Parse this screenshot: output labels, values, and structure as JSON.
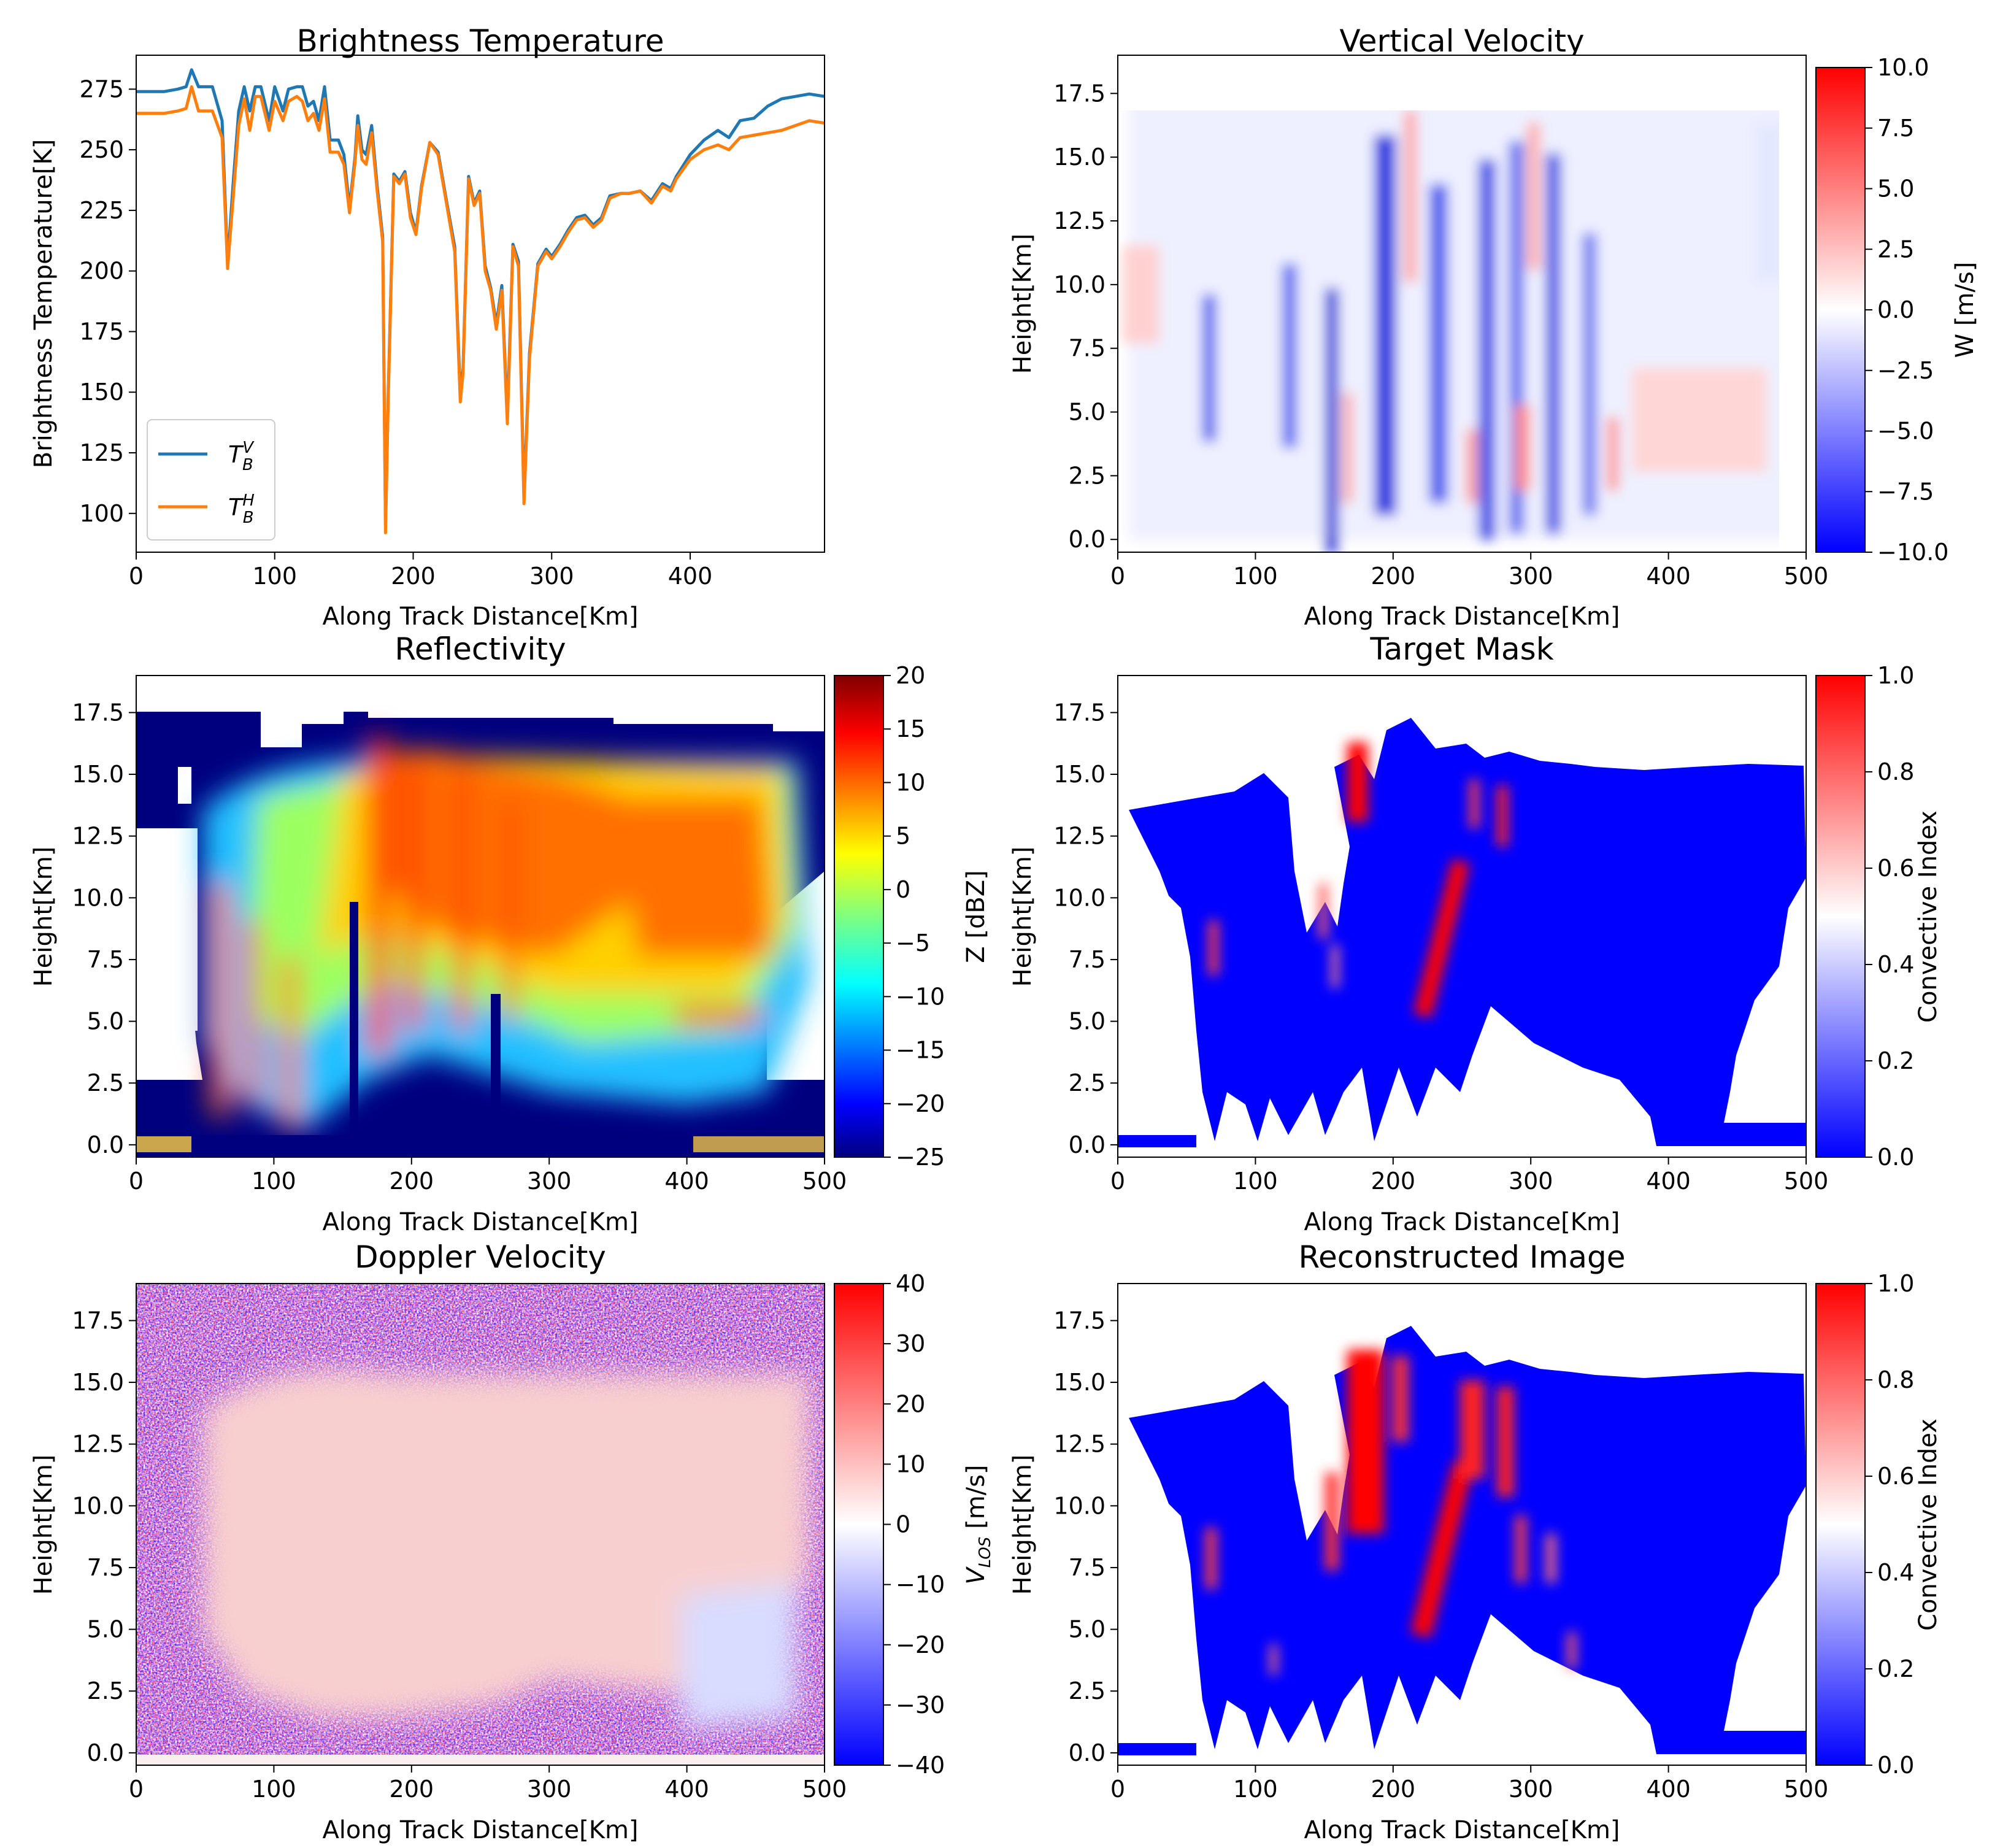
{
  "chart_data": [
    {
      "id": "bt",
      "type": "line",
      "title": "Brightness Temperature",
      "xlabel": "Along Track Distance[Km]",
      "ylabel": "Brightness Temperature[K]",
      "xlim": [
        0,
        497
      ],
      "ylim": [
        84,
        289
      ],
      "xticks": [
        0,
        100,
        200,
        300,
        400
      ],
      "yticks": [
        100,
        125,
        150,
        175,
        200,
        225,
        250,
        275
      ],
      "legend_position": "lower-left",
      "series": [
        {
          "name": "T_B^V",
          "legend_base": "T",
          "legend_sub": "B",
          "legend_sup": "V",
          "color": "#1f77b4",
          "x": [
            0,
            10,
            20,
            30,
            36,
            40,
            45,
            55,
            62,
            66,
            70,
            74,
            78,
            82,
            86,
            90,
            96,
            100,
            106,
            110,
            116,
            120,
            124,
            128,
            132,
            136,
            140,
            146,
            150,
            154,
            158,
            160,
            163,
            166,
            170,
            174,
            178,
            180,
            182,
            186,
            190,
            194,
            198,
            202,
            206,
            212,
            218,
            224,
            230,
            234,
            236,
            240,
            244,
            248,
            252,
            256,
            260,
            264,
            268,
            272,
            276,
            280,
            284,
            290,
            296,
            300,
            306,
            312,
            318,
            324,
            330,
            336,
            342,
            350,
            356,
            364,
            372,
            380,
            386,
            390,
            400,
            410,
            420,
            428,
            436,
            446,
            456,
            466,
            476,
            486,
            497
          ],
          "y": [
            274,
            274,
            274,
            275,
            276,
            283,
            276,
            276,
            262,
            203,
            236,
            266,
            276,
            266,
            276,
            276,
            262,
            276,
            266,
            275,
            276,
            276,
            268,
            270,
            262,
            276,
            254,
            254,
            248,
            226,
            247,
            264,
            250,
            248,
            260,
            235,
            214,
            95,
            150,
            240,
            237,
            241,
            224,
            216,
            235,
            253,
            249,
            229,
            210,
            149,
            160,
            239,
            228,
            233,
            202,
            193,
            178,
            194,
            140,
            211,
            204,
            107,
            166,
            203,
            209,
            206,
            211,
            217,
            222,
            223,
            219,
            222,
            231,
            232,
            232,
            233,
            229,
            236,
            234,
            239,
            248,
            254,
            258,
            255,
            262,
            263,
            268,
            271,
            272,
            273,
            272
          ]
        },
        {
          "name": "T_B^H",
          "legend_base": "T",
          "legend_sub": "B",
          "legend_sup": "H",
          "color": "#ff7f0e",
          "x": [
            0,
            10,
            20,
            30,
            36,
            40,
            45,
            55,
            62,
            66,
            70,
            74,
            78,
            82,
            86,
            90,
            96,
            100,
            106,
            110,
            116,
            120,
            124,
            128,
            132,
            136,
            140,
            146,
            150,
            154,
            158,
            160,
            163,
            166,
            170,
            174,
            178,
            180,
            182,
            186,
            190,
            194,
            198,
            202,
            206,
            212,
            218,
            224,
            230,
            234,
            236,
            240,
            244,
            248,
            252,
            256,
            260,
            264,
            268,
            272,
            276,
            280,
            284,
            290,
            296,
            300,
            306,
            312,
            318,
            324,
            330,
            336,
            342,
            350,
            356,
            364,
            372,
            380,
            386,
            390,
            400,
            410,
            420,
            428,
            436,
            446,
            456,
            466,
            476,
            486,
            497
          ],
          "y": [
            265,
            265,
            265,
            266,
            267,
            276,
            266,
            266,
            255,
            201,
            230,
            260,
            271,
            258,
            272,
            272,
            258,
            270,
            262,
            270,
            272,
            270,
            262,
            265,
            258,
            271,
            249,
            249,
            244,
            224,
            245,
            260,
            246,
            244,
            257,
            233,
            212,
            92,
            148,
            239,
            236,
            240,
            222,
            215,
            234,
            253,
            248,
            228,
            208,
            146,
            158,
            238,
            227,
            232,
            200,
            192,
            176,
            192,
            137,
            210,
            202,
            104,
            164,
            202,
            208,
            205,
            210,
            216,
            221,
            222,
            218,
            221,
            230,
            232,
            232,
            233,
            228,
            235,
            233,
            238,
            246,
            250,
            252,
            250,
            255,
            256,
            257,
            258,
            260,
            262,
            261
          ]
        }
      ]
    },
    {
      "id": "vv",
      "type": "heatmap",
      "title": "Vertical Velocity",
      "xlabel": "Along Track Distance[Km]",
      "ylabel": "Height[Km]",
      "xlim": [
        0,
        500
      ],
      "ylim": [
        -0.5,
        19
      ],
      "xticks": [
        0,
        100,
        200,
        300,
        400,
        500
      ],
      "yticks": [
        0.0,
        2.5,
        5.0,
        7.5,
        10.0,
        12.5,
        15.0,
        17.5
      ],
      "colorbar": {
        "label": "W [m/s]",
        "min": -10.0,
        "max": 10.0,
        "ticks": [
          -10.0,
          -7.5,
          -5.0,
          -2.5,
          0.0,
          2.5,
          5.0,
          7.5,
          10.0
        ],
        "colormap": "bwr"
      }
    },
    {
      "id": "refl",
      "type": "heatmap",
      "title": "Reflectivity",
      "xlabel": "Along Track Distance[Km]",
      "ylabel": "Height[Km]",
      "xlim": [
        0,
        500
      ],
      "ylim": [
        -0.5,
        19
      ],
      "xticks": [
        0,
        100,
        200,
        300,
        400,
        500
      ],
      "yticks": [
        0.0,
        2.5,
        5.0,
        7.5,
        10.0,
        12.5,
        15.0,
        17.5
      ],
      "colorbar": {
        "label": "Z [dBZ]",
        "min": -25,
        "max": 20,
        "ticks": [
          -25,
          -20,
          -15,
          -10,
          -5,
          0,
          5,
          10,
          15,
          20
        ],
        "colormap": "jet"
      }
    },
    {
      "id": "mask",
      "type": "heatmap",
      "title": "Target Mask",
      "xlabel": "Along Track Distance[Km]",
      "ylabel": "Height[Km]",
      "xlim": [
        0,
        500
      ],
      "ylim": [
        -0.5,
        19
      ],
      "xticks": [
        0,
        100,
        200,
        300,
        400,
        500
      ],
      "yticks": [
        0.0,
        2.5,
        5.0,
        7.5,
        10.0,
        12.5,
        15.0,
        17.5
      ],
      "colorbar": {
        "label": "Convective Index",
        "min": 0.0,
        "max": 1.0,
        "ticks": [
          0.0,
          0.2,
          0.4,
          0.6,
          0.8,
          1.0
        ],
        "colormap": "bwr"
      }
    },
    {
      "id": "dop",
      "type": "heatmap",
      "title": "Doppler Velocity",
      "xlabel": "Along Track Distance[Km]",
      "ylabel": "Height[Km]",
      "xlim": [
        0,
        500
      ],
      "ylim": [
        -0.5,
        19
      ],
      "xticks": [
        0,
        100,
        200,
        300,
        400,
        500
      ],
      "yticks": [
        0.0,
        2.5,
        5.0,
        7.5,
        10.0,
        12.5,
        15.0,
        17.5
      ],
      "colorbar": {
        "label": "V_LOS [m/s]",
        "label_base": "V",
        "label_sub": "LOS",
        "label_tail": " [m/s]",
        "min": -40,
        "max": 40,
        "ticks": [
          -40,
          -30,
          -20,
          -10,
          0,
          10,
          20,
          30,
          40
        ],
        "colormap": "bwr"
      }
    },
    {
      "id": "recon",
      "type": "heatmap",
      "title": "Reconstructed Image",
      "xlabel": "Along Track Distance[Km]",
      "ylabel": "Height[Km]",
      "xlim": [
        0,
        500
      ],
      "ylim": [
        -0.5,
        19
      ],
      "xticks": [
        0,
        100,
        200,
        300,
        400,
        500
      ],
      "yticks": [
        0.0,
        2.5,
        5.0,
        7.5,
        10.0,
        12.5,
        15.0,
        17.5
      ],
      "colorbar": {
        "label": "Convective Index",
        "min": 0.0,
        "max": 1.0,
        "ticks": [
          0.0,
          0.2,
          0.4,
          0.6,
          0.8,
          1.0
        ],
        "colormap": "bwr"
      }
    }
  ]
}
